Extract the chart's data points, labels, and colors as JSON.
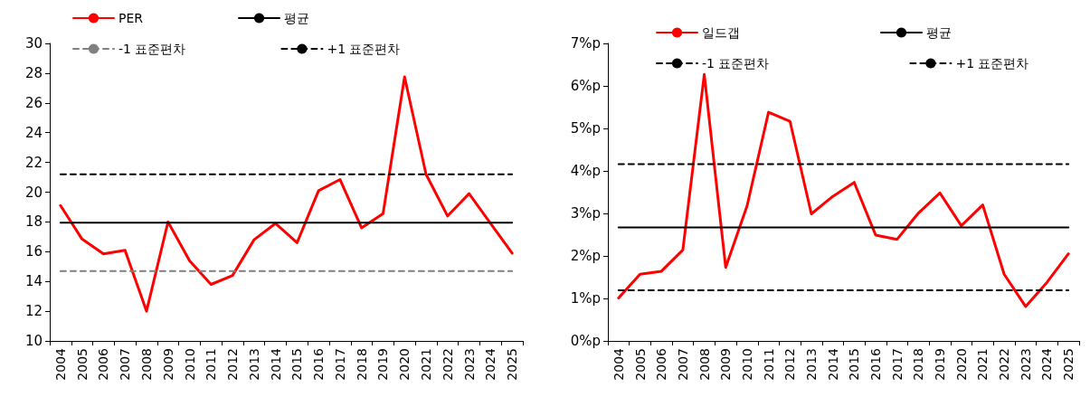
{
  "chart_data": [
    {
      "type": "line",
      "categories": [
        "2004",
        "2005",
        "2006",
        "2007",
        "2008",
        "2009",
        "2010",
        "2011",
        "2012",
        "2013",
        "2014",
        "2015",
        "2016",
        "2017",
        "2018",
        "2019",
        "2020",
        "2021",
        "2022",
        "2023",
        "2024",
        "2025"
      ],
      "series": [
        {
          "name": "PER",
          "color": "#ff0000",
          "line_style": "solid",
          "values": [
            19.1,
            16.85,
            15.85,
            16.1,
            12.0,
            18.0,
            15.4,
            13.8,
            14.4,
            16.8,
            17.9,
            16.6,
            20.1,
            20.85,
            17.6,
            18.55,
            27.75,
            21.2,
            18.4,
            19.9,
            17.9,
            15.9
          ]
        },
        {
          "name": "평균",
          "color": "#000000",
          "line_style": "solid",
          "values": [
            17.95,
            17.95,
            17.95,
            17.95,
            17.95,
            17.95,
            17.95,
            17.95,
            17.95,
            17.95,
            17.95,
            17.95,
            17.95,
            17.95,
            17.95,
            17.95,
            17.95,
            17.95,
            17.95,
            17.95,
            17.95,
            17.95
          ]
        },
        {
          "name": "-1 표준편차",
          "color": "#808080",
          "line_style": "dashed",
          "values": [
            14.7,
            14.7,
            14.7,
            14.7,
            14.7,
            14.7,
            14.7,
            14.7,
            14.7,
            14.7,
            14.7,
            14.7,
            14.7,
            14.7,
            14.7,
            14.7,
            14.7,
            14.7,
            14.7,
            14.7,
            14.7,
            14.7
          ]
        },
        {
          "name": "+1 표준편차",
          "color": "#000000",
          "line_style": "dashed",
          "values": [
            21.2,
            21.2,
            21.2,
            21.2,
            21.2,
            21.2,
            21.2,
            21.2,
            21.2,
            21.2,
            21.2,
            21.2,
            21.2,
            21.2,
            21.2,
            21.2,
            21.2,
            21.2,
            21.2,
            21.2,
            21.2,
            21.2
          ]
        }
      ],
      "ylim": [
        10,
        30
      ],
      "yticks": [
        10,
        12,
        14,
        16,
        18,
        20,
        22,
        24,
        26,
        28,
        30
      ],
      "grid": false,
      "legend": "top",
      "marker": "none"
    },
    {
      "type": "line",
      "categories": [
        "2004",
        "2005",
        "2006",
        "2007",
        "2008",
        "2009",
        "2010",
        "2011",
        "2012",
        "2013",
        "2014",
        "2015",
        "2016",
        "2017",
        "2018",
        "2019",
        "2020",
        "2021",
        "2022",
        "2023",
        "2024",
        "2025"
      ],
      "series": [
        {
          "name": "일드갭",
          "color": "#ff0000",
          "line_style": "solid",
          "values": [
            1.01,
            1.57,
            1.64,
            2.14,
            6.27,
            1.73,
            3.18,
            5.38,
            5.17,
            2.99,
            3.4,
            3.73,
            2.49,
            2.39,
            3.01,
            3.48,
            2.71,
            3.2,
            1.57,
            0.81,
            1.38,
            2.05
          ]
        },
        {
          "name": "평균",
          "color": "#000000",
          "line_style": "solid",
          "values": [
            2.67,
            2.67,
            2.67,
            2.67,
            2.67,
            2.67,
            2.67,
            2.67,
            2.67,
            2.67,
            2.67,
            2.67,
            2.67,
            2.67,
            2.67,
            2.67,
            2.67,
            2.67,
            2.67,
            2.67,
            2.67,
            2.67
          ]
        },
        {
          "name": "-1 표준편차",
          "color": "#000000",
          "line_style": "dashed",
          "values": [
            1.19,
            1.19,
            1.19,
            1.19,
            1.19,
            1.19,
            1.19,
            1.19,
            1.19,
            1.19,
            1.19,
            1.19,
            1.19,
            1.19,
            1.19,
            1.19,
            1.19,
            1.19,
            1.19,
            1.19,
            1.19,
            1.19
          ]
        },
        {
          "name": "+1 표준편차",
          "color": "#000000",
          "line_style": "dashed",
          "values": [
            4.16,
            4.16,
            4.16,
            4.16,
            4.16,
            4.16,
            4.16,
            4.16,
            4.16,
            4.16,
            4.16,
            4.16,
            4.16,
            4.16,
            4.16,
            4.16,
            4.16,
            4.16,
            4.16,
            4.16,
            4.16,
            4.16
          ]
        }
      ],
      "ylim": [
        0,
        7
      ],
      "yticks": [
        {
          "value": 0,
          "label": "0%p"
        },
        {
          "value": 1,
          "label": "1%p"
        },
        {
          "value": 2,
          "label": "2%p"
        },
        {
          "value": 3,
          "label": "3%p"
        },
        {
          "value": 4,
          "label": "4%p"
        },
        {
          "value": 5,
          "label": "5%p"
        },
        {
          "value": 6,
          "label": "6%p"
        },
        {
          "value": 7,
          "label": "7%p"
        }
      ],
      "grid": false,
      "legend": "top",
      "marker": "none"
    }
  ]
}
